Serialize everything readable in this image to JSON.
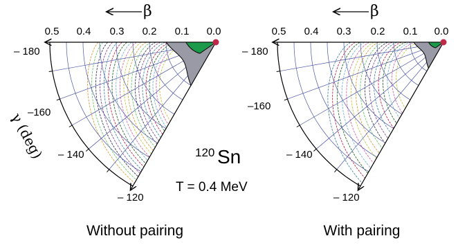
{
  "figure": {
    "beta_arrow_label": "β",
    "beta_ticks": [
      "0.5",
      "0.4",
      "0.3",
      "0.2",
      "0.1",
      "0.0"
    ],
    "gamma_ticks": [
      "– 180",
      "–160",
      "– 140",
      "– 120"
    ],
    "gamma_ticks_right": [
      "– 180",
      "–160",
      "– 140",
      "– 120"
    ],
    "gamma_axis_label": "γ (deg)",
    "nucleus_mass": "120",
    "nucleus_symbol": "Sn",
    "temperature": "T = 0.4 MeV",
    "left_caption": "Without pairing",
    "right_caption": "With pairing"
  },
  "colors": {
    "grid": "#4a55a8",
    "outline": "#000000",
    "minimum_fill": "#1a9a4a",
    "gray_region": "#9a9aa6",
    "origin_dot": "#c0284a",
    "contour_palette": [
      "#c8c84a",
      "#d86aa8",
      "#7ab0d8",
      "#2a6a2a",
      "#c0284a",
      "#4a8aa8",
      "#8a4a9a",
      "#3a3a5a",
      "#6ac86a",
      "#d8a040"
    ]
  }
}
